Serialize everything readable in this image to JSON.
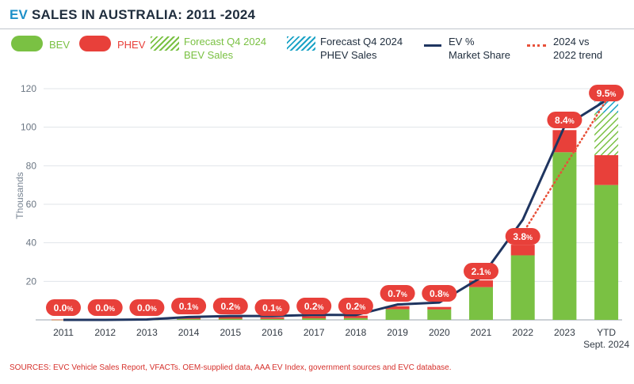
{
  "title_prefix": "EV",
  "title_rest": " SALES IN AUSTRALIA: 2011 -2024",
  "legend": {
    "bev": "BEV",
    "phev": "PHEV",
    "forecast_bev": [
      "Forecast Q4 2024",
      "BEV Sales"
    ],
    "forecast_phev": [
      "Forecast Q4 2024",
      "PHEV Sales"
    ],
    "market_share": [
      "EV %",
      "Market Share"
    ],
    "trend": [
      "2024 vs",
      "2022 trend"
    ]
  },
  "sources": "SOURCES: EVC Vehicle Sales Report, VFACTs. OEM-supplied data, AAA EV Index, government sources and EVC database.",
  "colors": {
    "bev": "#7ac143",
    "phev": "#e8403a",
    "forecast_phev": "#1ba3c6",
    "share_line": "#1f3560",
    "trend": "#e8513a",
    "title_accent": "#1e90c8"
  },
  "chart_data": {
    "type": "bar",
    "stacked": true,
    "ylabel": "Thousands",
    "ylim": [
      0,
      120
    ],
    "yticks": [
      20,
      40,
      60,
      80,
      100,
      120
    ],
    "grid": true,
    "legend_position": "top",
    "categories": [
      "2011",
      "2012",
      "2013",
      "2014",
      "2015",
      "2016",
      "2017",
      "2018",
      "2019",
      "2020",
      "2021",
      "2022",
      "2023",
      "YTD|Sept. 2024"
    ],
    "series": [
      {
        "name": "BEV",
        "values": [
          0.1,
          0.1,
          0.2,
          0.5,
          0.6,
          0.5,
          0.8,
          0.9,
          5.5,
          5.4,
          17.0,
          33.5,
          87.0,
          70.0
        ]
      },
      {
        "name": "PHEV",
        "values": [
          0.1,
          0.2,
          0.1,
          0.7,
          1.3,
          0.8,
          1.2,
          1.3,
          1.6,
          1.3,
          3.5,
          5.5,
          11.5,
          15.5
        ]
      },
      {
        "name": "Forecast Q4 2024 BEV Sales",
        "values": [
          0,
          0,
          0,
          0,
          0,
          0,
          0,
          0,
          0,
          0,
          0,
          0,
          0,
          22.0
        ]
      },
      {
        "name": "Forecast Q4 2024 PHEV Sales",
        "values": [
          0,
          0,
          0,
          0,
          0,
          0,
          0,
          0,
          0,
          0,
          0,
          0,
          0,
          6.0
        ]
      }
    ],
    "market_share_labels": [
      "0.0",
      "0.0",
      "0.0",
      "0.1",
      "0.2",
      "0.1",
      "0.2",
      "0.2",
      "0.7",
      "0.8",
      "2.1",
      "3.8",
      "8.4",
      "9.5"
    ],
    "market_share_line": [
      0,
      0,
      0.2,
      1.5,
      2.0,
      2.0,
      2.6,
      2.5,
      8.0,
      9.0,
      22.0,
      52.0,
      100.5,
      114.0
    ],
    "trend_line": {
      "x": [
        "2022",
        "YTD|Sept. 2024"
      ],
      "y": [
        45.0,
        114.0
      ]
    },
    "label_percent": "%"
  }
}
